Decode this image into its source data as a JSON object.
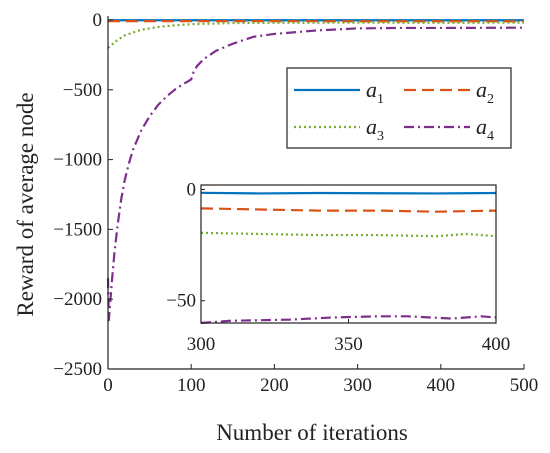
{
  "chart_data": [
    {
      "type": "line",
      "role": "main",
      "xlabel": "Number of iterations",
      "ylabel": "Reward of average node",
      "xlim": [
        0,
        500
      ],
      "ylim": [
        -2500,
        0
      ],
      "xticks": [
        "0",
        "100",
        "200",
        "300",
        "400",
        "500"
      ],
      "yticks": [
        "0",
        "−500",
        "−1000",
        "−1500",
        "−2000",
        "−2500"
      ],
      "legend_position": "upper-right",
      "series": [
        {
          "name": "a1",
          "label_base": "a",
          "label_sub": "1",
          "color": "#0072BD",
          "style": "solid",
          "x": [
            0,
            100,
            200,
            300,
            400,
            500
          ],
          "y": [
            -2,
            -2,
            -2,
            -2,
            -2,
            -2
          ]
        },
        {
          "name": "a2",
          "label_base": "a",
          "label_sub": "2",
          "color": "#D95319",
          "style": "dashed",
          "x": [
            0,
            100,
            200,
            300,
            400,
            500
          ],
          "y": [
            -8,
            -8,
            -8,
            -9,
            -9,
            -9
          ]
        },
        {
          "name": "a3",
          "label_base": "a",
          "label_sub": "3",
          "color": "#77AC30",
          "style": "dotted",
          "x": [
            0,
            5,
            10,
            20,
            40,
            60,
            80,
            100,
            150,
            200,
            300,
            400,
            500
          ],
          "y": [
            -200,
            -175,
            -150,
            -110,
            -70,
            -50,
            -38,
            -30,
            -22,
            -20,
            -19,
            -20,
            -19
          ]
        },
        {
          "name": "a4",
          "label_base": "a",
          "label_sub": "4",
          "color": "#7E2F8E",
          "style": "dashdot",
          "x": [
            0,
            1,
            3,
            5,
            8,
            12,
            16,
            20,
            25,
            30,
            40,
            50,
            60,
            70,
            80,
            90,
            96,
            100,
            103,
            107,
            115,
            130,
            150,
            175,
            200,
            250,
            300,
            350,
            400,
            450,
            500
          ],
          "y": [
            -1850,
            -2150,
            -2000,
            -1850,
            -1650,
            -1450,
            -1280,
            -1150,
            -1030,
            -930,
            -790,
            -690,
            -610,
            -550,
            -500,
            -460,
            -440,
            -425,
            -370,
            -330,
            -280,
            -220,
            -170,
            -120,
            -100,
            -75,
            -60,
            -57,
            -57,
            -56,
            -55
          ]
        }
      ]
    },
    {
      "type": "line",
      "role": "inset",
      "xlim": [
        300,
        400
      ],
      "ylim": [
        -60,
        2
      ],
      "xticks": [
        "300",
        "350",
        "400"
      ],
      "yticks": [
        "0",
        "−50"
      ],
      "series": [
        {
          "name": "a1",
          "color": "#0072BD",
          "style": "solid",
          "x": [
            300,
            320,
            340,
            360,
            380,
            400
          ],
          "y": [
            -1.5,
            -1.8,
            -1.6,
            -1.7,
            -1.8,
            -1.6
          ]
        },
        {
          "name": "a2",
          "color": "#D95319",
          "style": "dashed",
          "x": [
            300,
            320,
            340,
            360,
            380,
            400
          ],
          "y": [
            -8.5,
            -9,
            -9.5,
            -9.5,
            -10,
            -9.5
          ]
        },
        {
          "name": "a3",
          "color": "#77AC30",
          "style": "dotted",
          "x": [
            300,
            320,
            340,
            360,
            380,
            390,
            400
          ],
          "y": [
            -19.5,
            -20,
            -20.5,
            -20.5,
            -21,
            -20,
            -21
          ]
        },
        {
          "name": "a4",
          "color": "#7E2F8E",
          "style": "dashdot",
          "x": [
            300,
            310,
            330,
            345,
            360,
            370,
            385,
            395,
            400
          ],
          "y": [
            -60,
            -59,
            -58.5,
            -57.5,
            -57,
            -57,
            -58,
            -57,
            -57.5
          ]
        }
      ]
    }
  ]
}
